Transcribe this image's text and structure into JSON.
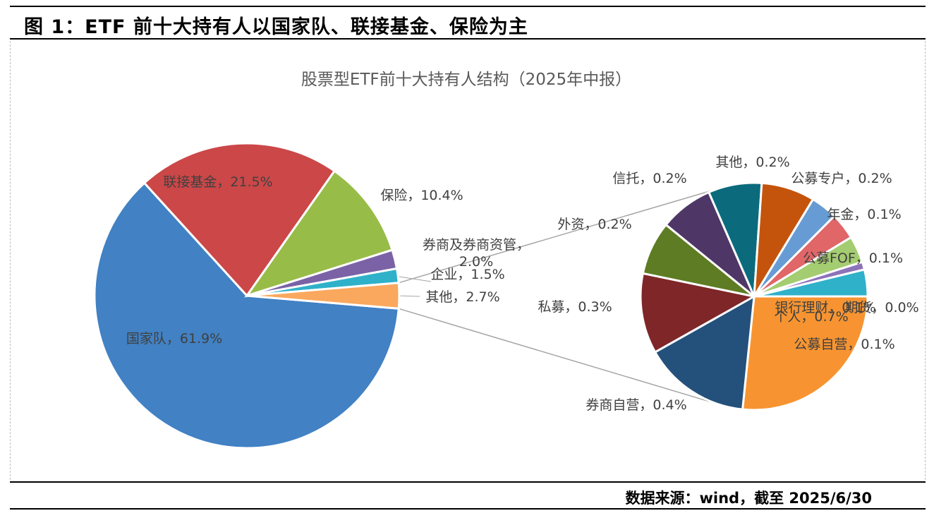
{
  "figure_title": "图 1：ETF 前十大持有人以国家队、联接基金、保险为主",
  "source": "数据来源：wind，截至 2025/6/30",
  "chart_data": {
    "type": "pie",
    "title": "股票型ETF前十大持有人结构（2025年中报）",
    "main_pie": {
      "slices": [
        {
          "label": "国家队",
          "value": 61.9,
          "text": "国家队，61.9%",
          "color": "#4181c4"
        },
        {
          "label": "联接基金",
          "value": 21.5,
          "text": "联接基金，21.5%",
          "color": "#cc4748"
        },
        {
          "label": "保险",
          "value": 10.4,
          "text": "保险，10.4%",
          "color": "#98bc48"
        },
        {
          "label": "券商及券商资管",
          "value": 2.0,
          "text": "券商及券商资管，\n2.0%",
          "color": "#7b62a6"
        },
        {
          "label": "企业",
          "value": 1.5,
          "text": "企业，1.5%",
          "color": "#2fb1c9"
        },
        {
          "label": "其他",
          "value": 2.7,
          "text": "其他，2.7%",
          "color": "#f9a85e"
        }
      ]
    },
    "secondary_pie": {
      "breakout_of": "其他",
      "slices": [
        {
          "label": "个人",
          "value": 0.7,
          "text": "个人，0.7%",
          "color": "#f79431"
        },
        {
          "label": "券商自营",
          "value": 0.4,
          "text": "券商自营，0.4%",
          "color": "#24507c"
        },
        {
          "label": "私募",
          "value": 0.3,
          "text": "私募，0.3%",
          "color": "#7f2628"
        },
        {
          "label": "外资",
          "value": 0.2,
          "text": "外资，0.2%",
          "color": "#5e7c24"
        },
        {
          "label": "信托",
          "value": 0.2,
          "text": "信托，0.2%",
          "color": "#4e3766"
        },
        {
          "label": "其他",
          "value": 0.2,
          "text": "其他，0.2%",
          "color": "#0b6b7d"
        },
        {
          "label": "公募专户",
          "value": 0.2,
          "text": "公募专户，0.2%",
          "color": "#c4540c"
        },
        {
          "label": "年金",
          "value": 0.1,
          "text": "年金，0.1%",
          "color": "#679bd4"
        },
        {
          "label": "公募FOF",
          "value": 0.1,
          "text": "公募FOF，0.1%",
          "color": "#e06668"
        },
        {
          "label": "银行理财",
          "value": 0.1,
          "text": "银行理财，0.1%",
          "color": "#a4cc70"
        },
        {
          "label": "期货",
          "value": 0.0,
          "text": "期货，0.0%",
          "color": "#8c73b8"
        },
        {
          "label": "公募自营",
          "value": 0.1,
          "text": "公募自营，0.1%",
          "color": "#2fb1c9"
        }
      ]
    },
    "legend": "none"
  }
}
